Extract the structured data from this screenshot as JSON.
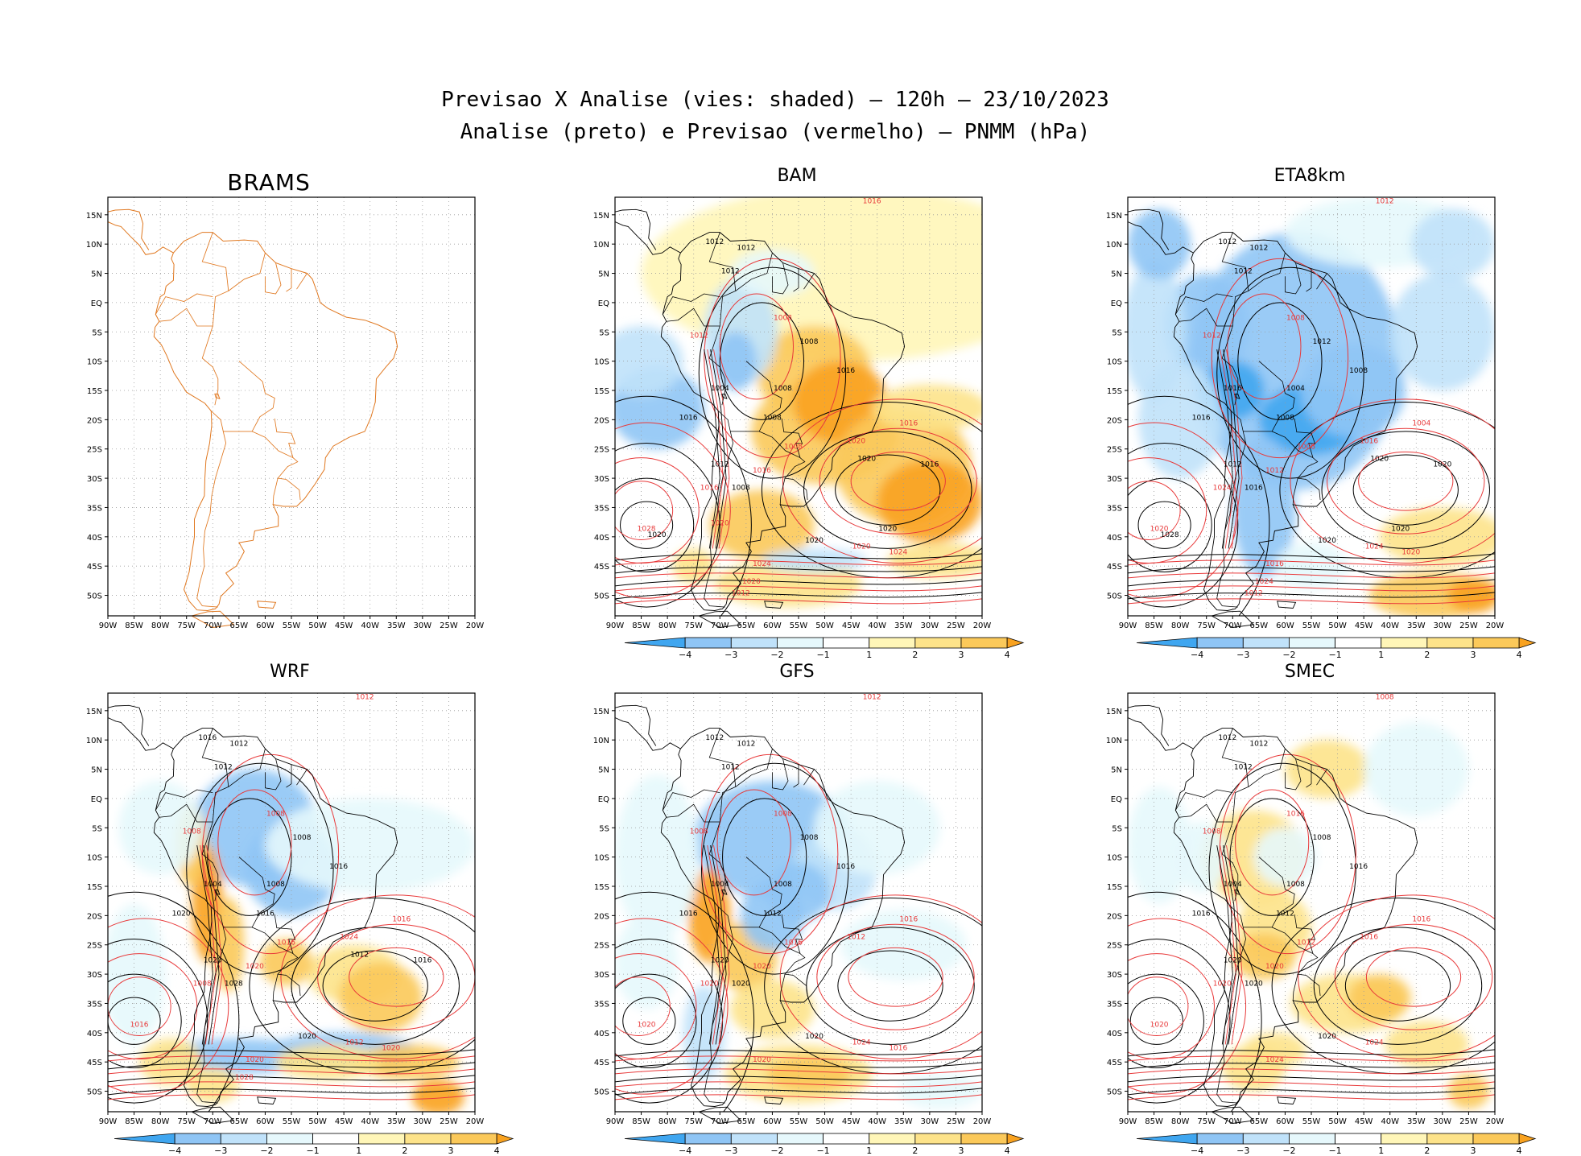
{
  "title": {
    "line1": "Previsao X Analise (vies: shaded) — 120h — 23/10/2023",
    "line2": "Analise (preto) e Previsao (vermelho) — PNMM (hPa)"
  },
  "lat_labels": [
    "15N",
    "10N",
    "5N",
    "EQ",
    "5S",
    "10S",
    "15S",
    "20S",
    "25S",
    "30S",
    "35S",
    "40S",
    "45S",
    "50S"
  ],
  "lon_labels": [
    "90W",
    "85W",
    "80W",
    "75W",
    "70W",
    "65W",
    "60W",
    "55W",
    "50W",
    "45W",
    "40W",
    "35W",
    "30W",
    "25W",
    "20W"
  ],
  "colorbar": {
    "labels": [
      "−4",
      "−3",
      "−2",
      "−1",
      "1",
      "2",
      "3",
      "4"
    ],
    "colors": [
      "#3fa6f0",
      "#8fc5f5",
      "#c0e2fa",
      "#e6f8fc",
      "#ffffff",
      "#fff6b8",
      "#fde38a",
      "#fbc95a",
      "#f9a21f"
    ]
  },
  "colors": {
    "analysis": "#000000",
    "forecast": "#e8393a",
    "coast": "#e07820"
  },
  "panels": [
    {
      "id": "brams",
      "name": "BRAMS",
      "empty": true,
      "labels_black": [],
      "labels_red": []
    },
    {
      "id": "bam",
      "name": "BAM",
      "bias": "warm",
      "labels_black": [
        "1012",
        "1012",
        "1012",
        "1008",
        "1016",
        "1004",
        "1008",
        "1008",
        "1016",
        "1012",
        "1008",
        "1020",
        "1020",
        "1016",
        "1020",
        "1020"
      ],
      "labels_red": [
        "1016",
        "1012",
        "1008",
        "1008",
        "1016",
        "1016",
        "1020",
        "1024",
        "1028",
        "1020",
        "1016",
        "1024",
        "1020",
        "1012",
        "1020"
      ]
    },
    {
      "id": "eta8km",
      "name": "ETA8km",
      "bias": "cold",
      "labels_black": [
        "1012",
        "1012",
        "1012",
        "1012",
        "1008",
        "1016",
        "1004",
        "1008",
        "1016",
        "1012",
        "1016",
        "1020",
        "1020",
        "1020",
        "1028",
        "1020"
      ],
      "labels_red": [
        "1012",
        "1012",
        "1008",
        "1008",
        "1012",
        "1004",
        "1016",
        "1016",
        "1020",
        "1024",
        "1024",
        "1020",
        "1024",
        "1012"
      ]
    },
    {
      "id": "wrf",
      "name": "WRF",
      "bias": "mixed",
      "labels_black": [
        "1016",
        "1012",
        "1012",
        "1008",
        "1016",
        "1004",
        "1008",
        "1016",
        "1020",
        "1020",
        "1028",
        "1020",
        "1012",
        "1016"
      ],
      "labels_red": [
        "1012",
        "1008",
        "1008",
        "1016",
        "1020",
        "1016",
        "1024",
        "1020",
        "1016",
        "1012",
        "1008",
        "1020",
        "1028"
      ]
    },
    {
      "id": "gfs",
      "name": "GFS",
      "bias": "coldnorth",
      "labels_black": [
        "1012",
        "1012",
        "1012",
        "1008",
        "1016",
        "1004",
        "1008",
        "1012",
        "1016",
        "1020",
        "1020",
        "1020"
      ],
      "labels_red": [
        "1012",
        "1008",
        "1008",
        "1016",
        "1020",
        "1016",
        "1012",
        "1020",
        "1020",
        "1024",
        "1020",
        "1016"
      ]
    },
    {
      "id": "smec",
      "name": "SMEC",
      "bias": "weak",
      "labels_black": [
        "1012",
        "1012",
        "1012",
        "1008",
        "1016",
        "1004",
        "1008",
        "1012",
        "1016",
        "1020",
        "1020",
        "1020"
      ],
      "labels_red": [
        "1008",
        "1008",
        "1016",
        "1012",
        "1020",
        "1016",
        "1016",
        "1024",
        "1020",
        "1024",
        "1020"
      ]
    }
  ]
}
